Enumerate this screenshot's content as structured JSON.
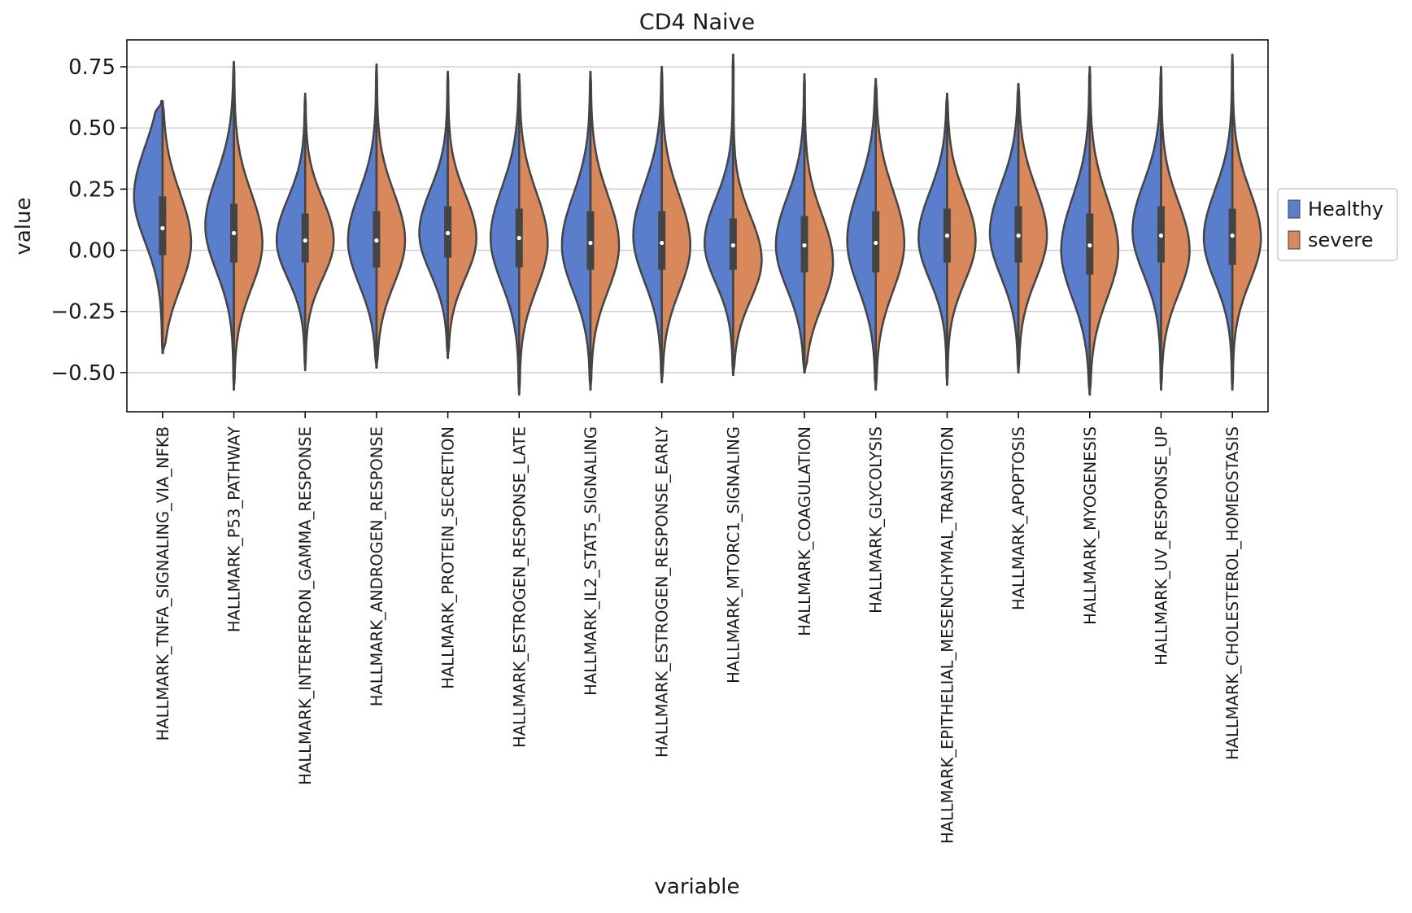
{
  "chart_data": {
    "type": "violin",
    "title": "CD4 Naive",
    "xlabel": "variable",
    "ylabel": "value",
    "ylim": [
      -0.66,
      0.86
    ],
    "yticks": [
      -0.5,
      -0.25,
      0.0,
      0.25,
      0.5,
      0.75
    ],
    "ytick_labels": [
      "−0.50",
      "−0.25",
      "0.00",
      "0.25",
      "0.50",
      "0.75"
    ],
    "grid": "horizontal",
    "legend": {
      "placement": "right",
      "entries": [
        {
          "label": "Healthy",
          "color": "#5a7ecb"
        },
        {
          "label": "severe",
          "color": "#d8885a"
        }
      ]
    },
    "categories": [
      "HALLMARK_TNFA_SIGNALING_VIA_NFKB",
      "HALLMARK_P53_PATHWAY",
      "HALLMARK_INTERFERON_GAMMA_RESPONSE",
      "HALLMARK_ANDROGEN_RESPONSE",
      "HALLMARK_PROTEIN_SECRETION",
      "HALLMARK_ESTROGEN_RESPONSE_LATE",
      "HALLMARK_IL2_STAT5_SIGNALING",
      "HALLMARK_ESTROGEN_RESPONSE_EARLY",
      "HALLMARK_MTORC1_SIGNALING",
      "HALLMARK_COAGULATION",
      "HALLMARK_GLYCOLYSIS",
      "HALLMARK_EPITHELIAL_MESENCHYMAL_TRANSITION",
      "HALLMARK_APOPTOSIS",
      "HALLMARK_MYOGENESIS",
      "HALLMARK_UV_RESPONSE_UP",
      "HALLMARK_CHOLESTEROL_HOMEOSTASIS"
    ],
    "series": [
      {
        "name": "Healthy",
        "min": [
          -0.42,
          -0.57,
          -0.49,
          -0.48,
          -0.44,
          -0.59,
          -0.57,
          -0.54,
          -0.51,
          -0.5,
          -0.57,
          -0.55,
          -0.5,
          -0.59,
          -0.57,
          -0.57
        ],
        "max": [
          0.61,
          0.77,
          0.64,
          0.76,
          0.73,
          0.72,
          0.73,
          0.75,
          0.8,
          0.72,
          0.7,
          0.64,
          0.68,
          0.75,
          0.75,
          0.8
        ],
        "mode": [
          0.22,
          0.1,
          0.04,
          0.04,
          0.07,
          0.05,
          0.02,
          0.06,
          0.03,
          0.02,
          0.04,
          0.05,
          0.07,
          0.0,
          0.08,
          0.05
        ]
      },
      {
        "name": "severe",
        "min": [
          -0.42,
          -0.57,
          -0.49,
          -0.48,
          -0.44,
          -0.59,
          -0.57,
          -0.54,
          -0.51,
          -0.5,
          -0.57,
          -0.55,
          -0.5,
          -0.59,
          -0.57,
          -0.57
        ],
        "max": [
          0.61,
          0.77,
          0.64,
          0.76,
          0.73,
          0.72,
          0.73,
          0.75,
          0.8,
          0.72,
          0.7,
          0.64,
          0.68,
          0.75,
          0.75,
          0.8
        ],
        "mode": [
          0.03,
          0.03,
          0.04,
          0.04,
          0.05,
          0.03,
          0.02,
          0.02,
          -0.04,
          -0.05,
          0.03,
          0.04,
          0.06,
          0.0,
          0.0,
          0.05
        ]
      }
    ],
    "box": {
      "q1": [
        -0.02,
        -0.05,
        -0.05,
        -0.07,
        -0.03,
        -0.07,
        -0.08,
        -0.08,
        -0.08,
        -0.09,
        -0.09,
        -0.05,
        -0.05,
        -0.1,
        -0.05,
        -0.06
      ],
      "q3": [
        0.22,
        0.19,
        0.15,
        0.16,
        0.18,
        0.17,
        0.16,
        0.16,
        0.13,
        0.14,
        0.16,
        0.17,
        0.18,
        0.15,
        0.18,
        0.17
      ],
      "median": [
        0.09,
        0.07,
        0.04,
        0.04,
        0.07,
        0.05,
        0.03,
        0.03,
        0.02,
        0.02,
        0.03,
        0.06,
        0.06,
        0.02,
        0.06,
        0.06
      ]
    }
  }
}
